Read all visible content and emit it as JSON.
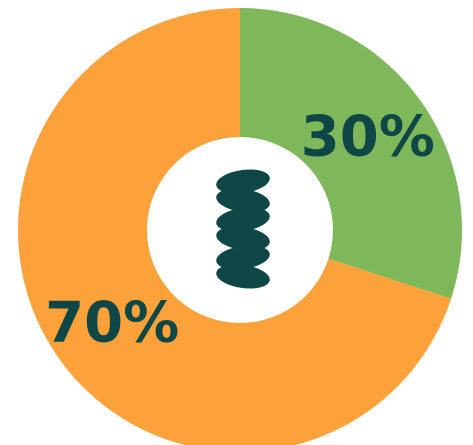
{
  "chart_data": {
    "type": "pie",
    "donut": true,
    "slices": [
      {
        "label": "30%",
        "value": 30,
        "color": "#7fb85a"
      },
      {
        "label": "70%",
        "value": 70,
        "color": "#fda23a"
      }
    ],
    "center_icon": "grain-wheat-icon",
    "colors": {
      "label_text": "#0f4747",
      "center_icon": "#0f4747",
      "hole": "#ffffff"
    }
  }
}
